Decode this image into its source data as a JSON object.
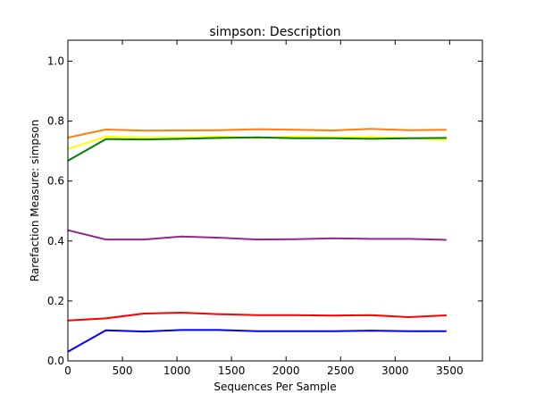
{
  "chart_data": {
    "type": "line",
    "title": "simpson: Description",
    "xlabel": "Sequences Per Sample",
    "ylabel": "Rarefaction Measure: simpson",
    "xlim": [
      0,
      3800
    ],
    "ylim": [
      0.0,
      1.07
    ],
    "x_ticks": [
      "0",
      "500",
      "1000",
      "1500",
      "2000",
      "2500",
      "3000",
      "3500"
    ],
    "y_ticks": [
      "0.0",
      "0.2",
      "0.4",
      "0.6",
      "0.8",
      "1.0"
    ],
    "grid": false,
    "x": [
      1,
      348,
      695,
      1042,
      1389,
      1736,
      2083,
      2430,
      2777,
      3124,
      3471
    ],
    "series": [
      {
        "color": "#ff7f0e",
        "values": [
          0.745,
          0.772,
          0.768,
          0.769,
          0.77,
          0.773,
          0.771,
          0.769,
          0.774,
          0.77,
          0.771
        ]
      },
      {
        "color": "#ffff00",
        "values": [
          0.707,
          0.748,
          0.745,
          0.745,
          0.748,
          0.744,
          0.748,
          0.746,
          0.747,
          0.744,
          0.738
        ]
      },
      {
        "color": "#008000",
        "values": [
          0.668,
          0.74,
          0.739,
          0.741,
          0.744,
          0.746,
          0.743,
          0.743,
          0.741,
          0.743,
          0.744
        ]
      },
      {
        "color": "#91278f",
        "values": [
          0.436,
          0.405,
          0.405,
          0.415,
          0.411,
          0.405,
          0.406,
          0.409,
          0.407,
          0.407,
          0.404
        ]
      },
      {
        "color": "#ff0000",
        "values": [
          0.135,
          0.142,
          0.158,
          0.161,
          0.156,
          0.153,
          0.153,
          0.151,
          0.153,
          0.146,
          0.152
        ]
      },
      {
        "color": "#0000ff",
        "values": [
          0.031,
          0.102,
          0.098,
          0.103,
          0.103,
          0.099,
          0.099,
          0.099,
          0.101,
          0.099,
          0.099
        ]
      }
    ]
  }
}
